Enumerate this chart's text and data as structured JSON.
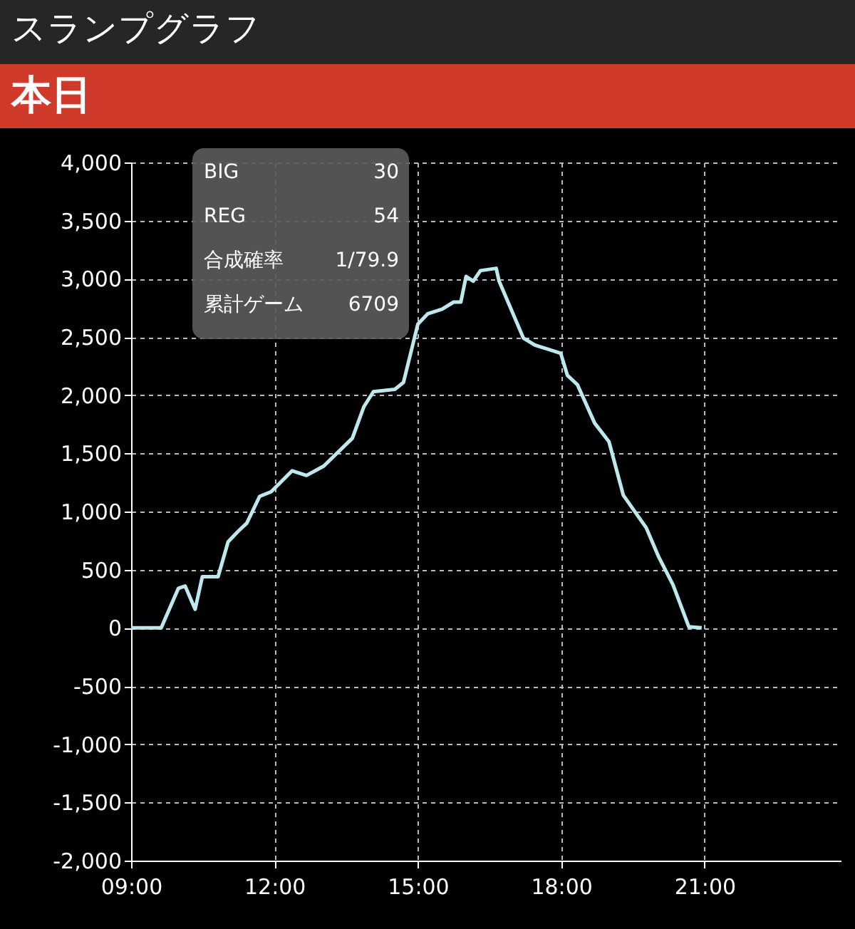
{
  "chart_data": {
    "type": "line",
    "title": "スランプグラフ",
    "subtitle": "本日",
    "annotations": [
      "BIG",
      "30",
      "REG",
      "54",
      "合成確率",
      "1/79.9",
      "累計ゲーム",
      "6709"
    ],
    "series": [
      {
        "color": "#bde8ee",
        "x": [
          9.0,
          9.63,
          9.99,
          10.13,
          10.34,
          10.49,
          10.82,
          11.03,
          11.24,
          11.42,
          11.69,
          11.93,
          12.37,
          12.67,
          13.03,
          13.63,
          13.87,
          14.07,
          14.52,
          14.7,
          15.0,
          15.21,
          15.51,
          15.75,
          15.9,
          16.01,
          16.16,
          16.31,
          16.64,
          16.7,
          17.21,
          17.45,
          17.99,
          18.13,
          18.34,
          18.7,
          19.0,
          19.3,
          19.78,
          20.04,
          20.34,
          20.67,
          20.94
        ],
        "values": [
          0,
          0,
          340,
          360,
          160,
          440,
          440,
          740,
          830,
          900,
          1130,
          1170,
          1350,
          1310,
          1390,
          1630,
          1900,
          2030,
          2050,
          2110,
          2610,
          2700,
          2740,
          2800,
          2800,
          3020,
          2980,
          3070,
          3090,
          2980,
          2490,
          2430,
          2360,
          2170,
          2090,
          1760,
          1600,
          1140,
          860,
          610,
          370,
          10,
          0
        ]
      }
    ],
    "xlim": [
      9,
      23.85
    ],
    "xticks": [
      {
        "value": 9,
        "label": "09:00"
      },
      {
        "value": 12,
        "label": "12:00"
      },
      {
        "value": 15,
        "label": "15:00"
      },
      {
        "value": 18,
        "label": "18:00"
      },
      {
        "value": 21,
        "label": "21:00"
      }
    ],
    "ylim": [
      -2000,
      4000
    ],
    "yticks": [
      {
        "value": -2000,
        "label": "-2,000"
      },
      {
        "value": -1500,
        "label": "-1,500"
      },
      {
        "value": -1000,
        "label": "-1,000"
      },
      {
        "value": -500,
        "label": "-500"
      },
      0,
      500,
      {
        "value": 1000,
        "label": "1,000"
      },
      {
        "value": 1500,
        "label": "1,500"
      },
      {
        "value": 2000,
        "label": "2,000"
      },
      {
        "value": 2500,
        "label": "2,500"
      },
      {
        "value": 3000,
        "label": "3,000"
      },
      {
        "value": 3500,
        "label": "3,500"
      },
      {
        "value": 4000,
        "label": "4,000"
      }
    ],
    "grid": true,
    "line_style": "solid",
    "marker": "none"
  }
}
